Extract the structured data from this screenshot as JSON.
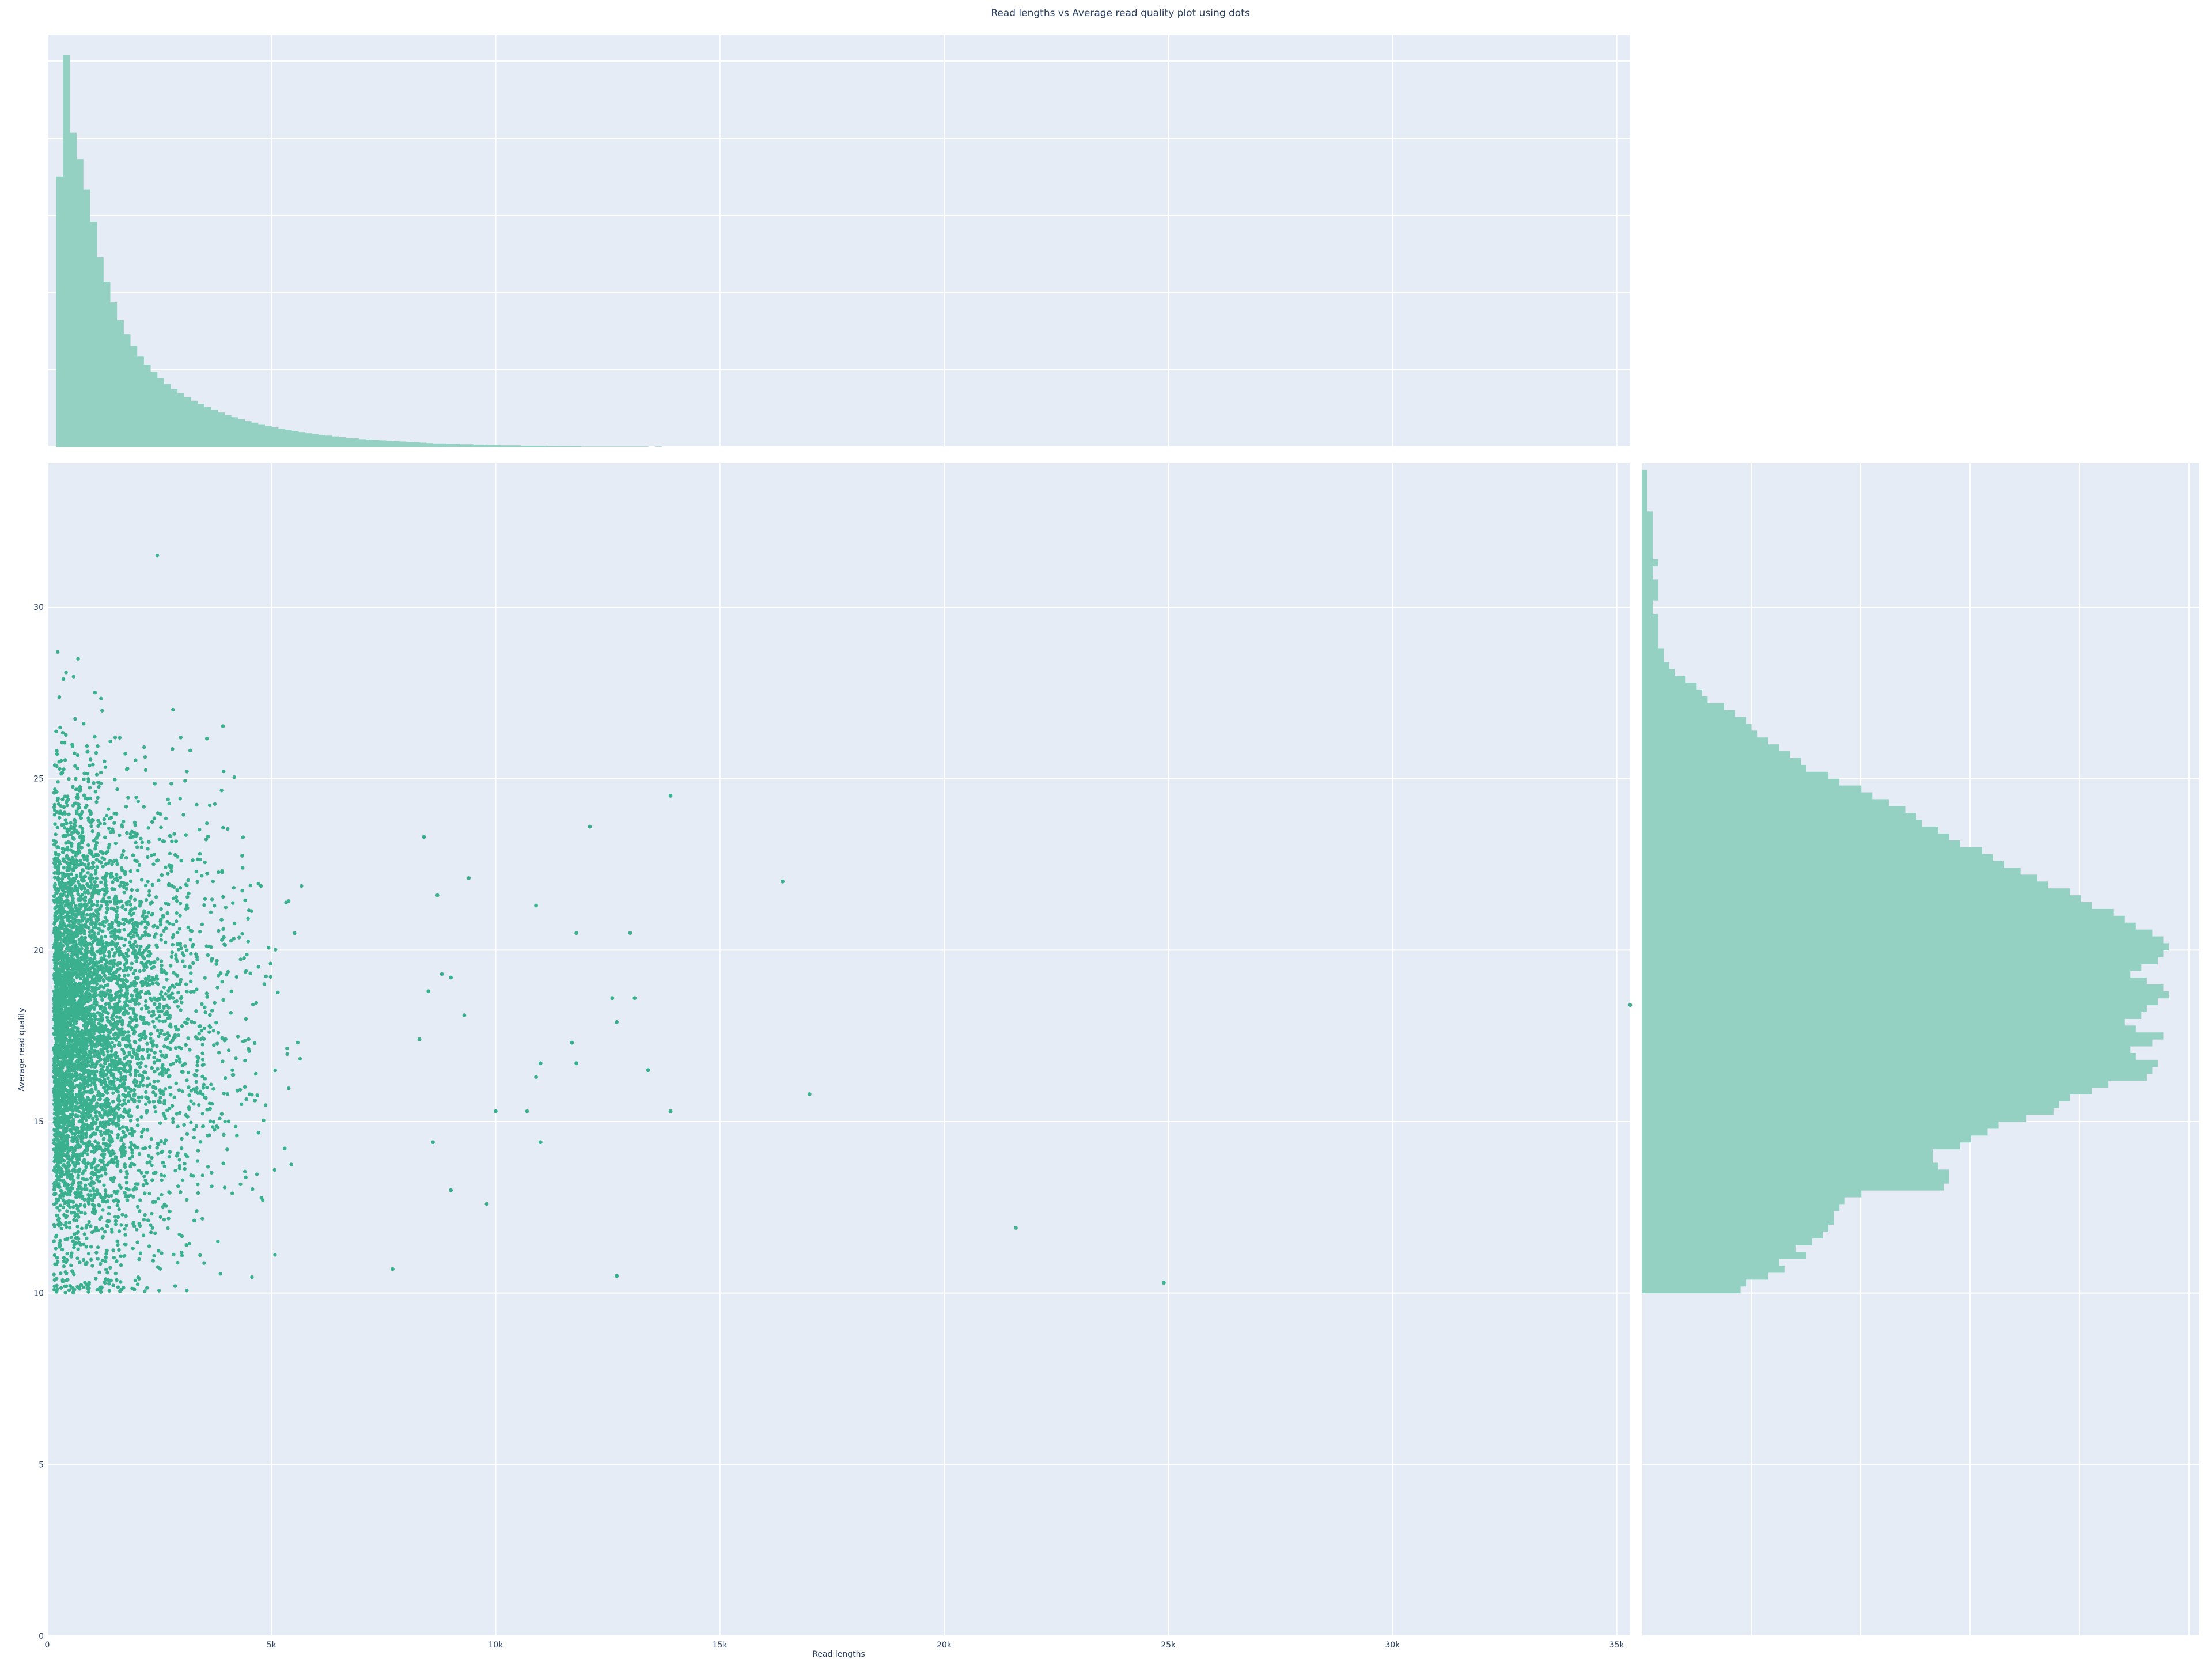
{
  "chart_data": {
    "type": "scatter",
    "title": "Read lengths vs Average read quality plot using dots",
    "xlabel": "Read lengths",
    "ylabel": "Average read quality",
    "xlim": [
      0,
      35300
    ],
    "ylim": [
      0,
      34.2
    ],
    "x_ticks": [
      "0",
      "5k",
      "10k",
      "15k",
      "20k",
      "25k",
      "30k",
      "35k"
    ],
    "y_ticks": [
      "0",
      "5",
      "10",
      "15",
      "20",
      "25",
      "30"
    ],
    "marker_color": "#3bb08f",
    "histogram_color": "#94d1c2",
    "background_color": "#e5ecf6",
    "series": [
      {
        "kind": "scatter",
        "note": "main body of roughly 10,000 reads, concentrated at short lengths",
        "x_range": [
          0,
          4200
        ],
        "y_range": [
          10,
          34
        ],
        "outliers": [
          [
            13900,
            24.5
          ],
          [
            16400,
            22.0
          ],
          [
            12100,
            23.6
          ],
          [
            9400,
            22.1
          ],
          [
            10900,
            21.3
          ],
          [
            11800,
            20.5
          ],
          [
            13000,
            20.5
          ],
          [
            12600,
            18.6
          ],
          [
            13100,
            18.6
          ],
          [
            12700,
            17.9
          ],
          [
            11700,
            17.3
          ],
          [
            11000,
            16.7
          ],
          [
            11800,
            16.7
          ],
          [
            13400,
            16.5
          ],
          [
            10900,
            16.3
          ],
          [
            17000,
            15.8
          ],
          [
            10700,
            15.3
          ],
          [
            13900,
            15.3
          ],
          [
            11000,
            14.4
          ],
          [
            9800,
            12.6
          ],
          [
            21600,
            11.9
          ],
          [
            12700,
            10.5
          ],
          [
            24900,
            10.3
          ],
          [
            35300,
            18.4
          ],
          [
            7700,
            10.7
          ],
          [
            9000,
            19.2
          ],
          [
            8500,
            18.8
          ],
          [
            8300,
            17.4
          ],
          [
            9300,
            18.1
          ],
          [
            9000,
            13.0
          ],
          [
            10000,
            15.3
          ],
          [
            8600,
            14.4
          ],
          [
            8700,
            21.6
          ],
          [
            8400,
            23.3
          ],
          [
            8800,
            19.3
          ]
        ]
      }
    ],
    "marginal_x_histogram": {
      "bin_width": 150,
      "counts": [
        690,
        1000,
        802,
        735,
        658,
        575,
        484,
        422,
        369,
        324,
        288,
        258,
        232,
        210,
        192,
        176,
        161,
        148,
        137,
        127,
        118,
        110,
        102,
        95,
        88,
        82,
        76,
        71,
        66,
        62,
        58,
        54,
        50,
        47,
        44,
        41,
        38,
        35,
        33,
        31,
        29,
        27,
        25,
        23,
        22,
        20,
        19,
        18,
        17,
        16,
        15,
        14,
        13,
        12,
        11,
        10,
        9,
        9,
        8,
        8,
        7,
        7,
        6,
        6,
        5,
        5,
        4,
        4,
        4,
        3,
        3,
        3,
        3,
        2,
        2,
        2,
        2,
        2,
        1,
        1,
        1,
        1,
        1,
        1,
        1,
        1,
        1,
        1,
        0,
        1
      ]
    },
    "marginal_y_histogram": {
      "bin_width": 0.2,
      "y_start": 10,
      "counts": [
        180,
        190,
        230,
        260,
        250,
        300,
        280,
        310,
        330,
        340,
        350,
        350,
        360,
        370,
        400,
        550,
        560,
        560,
        540,
        530,
        530,
        580,
        600,
        630,
        650,
        700,
        750,
        760,
        780,
        820,
        850,
        920,
        930,
        940,
        900,
        890,
        930,
        950,
        900,
        880,
        910,
        920,
        940,
        960,
        950,
        920,
        890,
        910,
        940,
        950,
        960,
        950,
        930,
        900,
        880,
        860,
        820,
        800,
        780,
        740,
        720,
        690,
        660,
        640,
        620,
        580,
        560,
        540,
        510,
        500,
        480,
        450,
        420,
        400,
        360,
        340,
        300,
        290,
        270,
        250,
        230,
        210,
        200,
        190,
        170,
        150,
        120,
        110,
        100,
        80,
        60,
        50,
        40,
        40,
        30,
        30,
        30,
        30,
        30,
        20,
        20,
        30,
        30,
        30,
        20,
        20,
        30,
        20,
        20,
        20,
        20,
        20,
        20,
        20,
        10,
        10,
        10,
        10,
        10,
        10
      ]
    }
  }
}
